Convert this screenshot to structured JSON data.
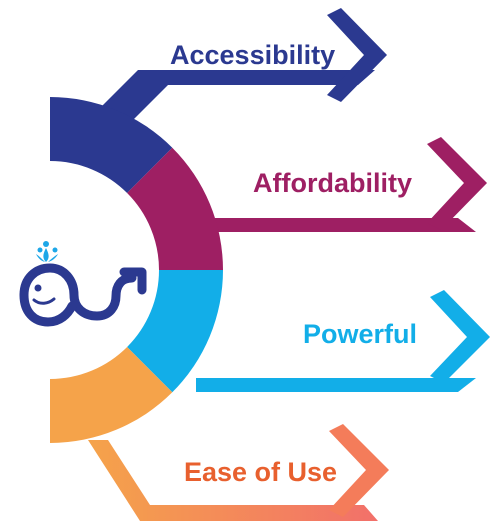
{
  "colors": {
    "accessibility": "#2B3990",
    "affordability": "#9E1F63",
    "powerful": "#12AEE8",
    "ease_of_use": "#F47C5A",
    "ease_of_use_text": "#E8602E",
    "ring_bottom": "#F5A34A",
    "logo": "#2B3990",
    "water": "#1DA7E8"
  },
  "icons": {
    "logo": "whale-arrow-logo-icon"
  },
  "items": [
    {
      "label": "Accessibility"
    },
    {
      "label": "Affordability"
    },
    {
      "label": "Powerful"
    },
    {
      "label": "Ease of Use"
    }
  ]
}
